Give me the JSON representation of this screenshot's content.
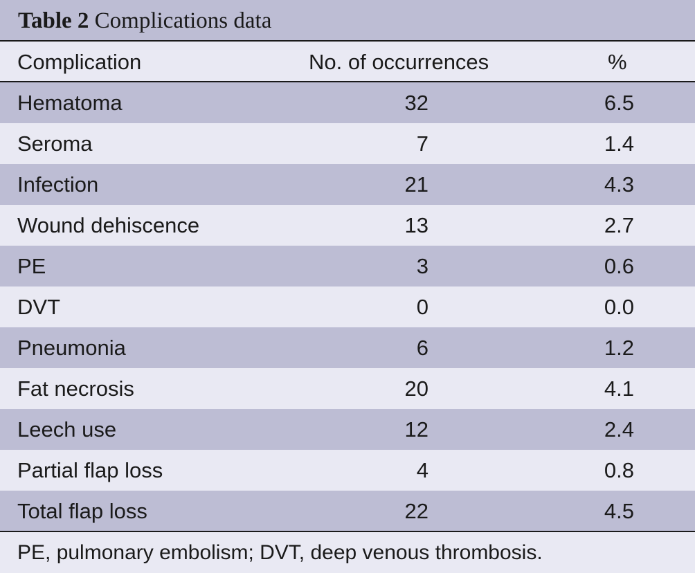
{
  "caption": {
    "label": "Table 2",
    "title": "Complications data"
  },
  "columns": {
    "complication": "Complication",
    "occurrences": "No. of occurrences",
    "percent": "%"
  },
  "rows": [
    {
      "complication": "Hematoma",
      "occurrences": "32",
      "percent": "6.5"
    },
    {
      "complication": "Seroma",
      "occurrences": "7",
      "percent": "1.4"
    },
    {
      "complication": "Infection",
      "occurrences": "21",
      "percent": "4.3"
    },
    {
      "complication": "Wound dehiscence",
      "occurrences": "13",
      "percent": "2.7"
    },
    {
      "complication": "PE",
      "occurrences": "3",
      "percent": "0.6"
    },
    {
      "complication": "DVT",
      "occurrences": "0",
      "percent": "0.0"
    },
    {
      "complication": "Pneumonia",
      "occurrences": "6",
      "percent": "1.2"
    },
    {
      "complication": "Fat necrosis",
      "occurrences": "20",
      "percent": "4.1"
    },
    {
      "complication": "Leech use",
      "occurrences": "12",
      "percent": "2.4"
    },
    {
      "complication": "Partial flap loss",
      "occurrences": "4",
      "percent": "0.8"
    },
    {
      "complication": "Total flap loss",
      "occurrences": "22",
      "percent": "4.5"
    }
  ],
  "footnote": "PE, pulmonary embolism; DVT, deep venous thrombosis.",
  "colors": {
    "shade": "#bdbdd4",
    "light": "#e9e9f3",
    "rule": "#1a1a1a"
  }
}
